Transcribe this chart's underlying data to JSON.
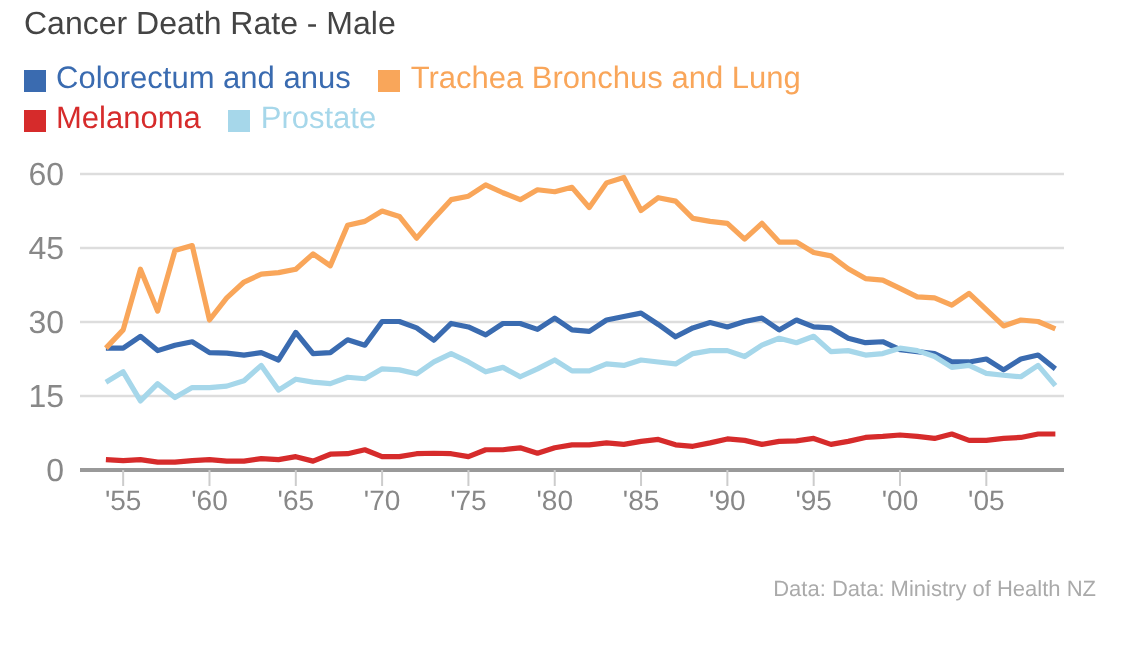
{
  "chart_data": {
    "type": "line",
    "title": "Cancer Death Rate - Male",
    "x": [
      1954,
      1955,
      1956,
      1957,
      1958,
      1959,
      1960,
      1961,
      1962,
      1963,
      1964,
      1965,
      1966,
      1967,
      1968,
      1969,
      1970,
      1971,
      1972,
      1973,
      1974,
      1975,
      1976,
      1977,
      1978,
      1979,
      1980,
      1981,
      1982,
      1983,
      1984,
      1985,
      1986,
      1987,
      1988,
      1989,
      1990,
      1991,
      1992,
      1993,
      1994,
      1995,
      1996,
      1997,
      1998,
      1999,
      2000,
      2001,
      2002,
      2003,
      2004,
      2005,
      2006,
      2007,
      2008,
      2009
    ],
    "series": [
      {
        "name": "Colorectum and anus",
        "color": "#3a6bb0",
        "values": [
          24.7,
          24.7,
          27.1,
          24.2,
          25.3,
          26,
          23.8,
          23.7,
          23.3,
          23.8,
          22.3,
          27.9,
          23.6,
          23.8,
          26.4,
          25.3,
          30.1,
          30.1,
          28.8,
          26.3,
          29.7,
          29,
          27.4,
          29.7,
          29.7,
          28.5,
          30.8,
          28.4,
          28.1,
          30.4,
          31.1,
          31.8,
          29.5,
          27,
          28.8,
          29.9,
          29,
          30.1,
          30.8,
          28.4,
          30.4,
          29,
          28.8,
          26.7,
          25.8,
          26,
          24.4,
          24,
          23.6,
          21.9,
          21.9,
          22.5,
          20.3,
          22.5,
          23.3,
          20.5
        ]
      },
      {
        "name": "Trachea Bronchus and Lung",
        "color": "#f9a65a",
        "values": [
          24.7,
          28.4,
          40.7,
          32.2,
          44.5,
          45.5,
          30.4,
          34.9,
          38.1,
          39.7,
          40,
          40.7,
          43.8,
          41.4,
          49.6,
          50.4,
          52.5,
          51.4,
          47,
          51,
          54.8,
          55.5,
          57.8,
          56.2,
          54.8,
          56.8,
          56.4,
          57.3,
          53.2,
          58.2,
          59.3,
          52.6,
          55.2,
          54.5,
          51,
          50.4,
          50,
          46.8,
          50,
          46.2,
          46.2,
          44.1,
          43.4,
          40.8,
          38.8,
          38.5,
          36.8,
          35.1,
          34.9,
          33.4,
          35.8,
          32.5,
          29.2,
          30.4,
          30.1,
          28.6
        ]
      },
      {
        "name": "Melanoma",
        "color": "#d62b2b",
        "values": [
          2.1,
          1.9,
          2.1,
          1.6,
          1.6,
          1.9,
          2.1,
          1.8,
          1.8,
          2.3,
          2.1,
          2.7,
          1.8,
          3.2,
          3.3,
          4.1,
          2.7,
          2.7,
          3.3,
          3.4,
          3.3,
          2.7,
          4.1,
          4.1,
          4.5,
          3.4,
          4.5,
          5.1,
          5.1,
          5.5,
          5.2,
          5.8,
          6.2,
          5.1,
          4.8,
          5.5,
          6.3,
          6,
          5.2,
          5.8,
          5.9,
          6.4,
          5.2,
          5.8,
          6.6,
          6.8,
          7.1,
          6.8,
          6.4,
          7.3,
          6,
          6,
          6.4,
          6.6,
          7.3,
          7.3
        ]
      },
      {
        "name": "Prostate",
        "color": "#a6d7ea",
        "values": [
          17.8,
          19.9,
          14,
          17.5,
          14.7,
          16.7,
          16.7,
          17,
          18.1,
          21.2,
          16.2,
          18.4,
          17.8,
          17.5,
          18.8,
          18.5,
          20.5,
          20.3,
          19.5,
          21.9,
          23.6,
          21.9,
          19.9,
          20.8,
          18.9,
          20.5,
          22.3,
          20.1,
          20.1,
          21.5,
          21.2,
          22.3,
          21.9,
          21.5,
          23.6,
          24.2,
          24.2,
          23,
          25.3,
          26.7,
          25.8,
          27.1,
          24,
          24.2,
          23.3,
          23.6,
          24.7,
          24.2,
          23,
          20.8,
          21.2,
          19.6,
          19.2,
          18.9,
          21.2,
          17.1
        ]
      }
    ],
    "xlim": [
      1952.5,
      2009.5
    ],
    "xticks": [
      {
        "value": 1955,
        "label": "'55"
      },
      {
        "value": 1960,
        "label": "'60"
      },
      {
        "value": 1965,
        "label": "'65"
      },
      {
        "value": 1970,
        "label": "'70"
      },
      {
        "value": 1975,
        "label": "'75"
      },
      {
        "value": 1980,
        "label": "'80"
      },
      {
        "value": 1985,
        "label": "'85"
      },
      {
        "value": 1990,
        "label": "'90"
      },
      {
        "value": 1995,
        "label": "'95"
      },
      {
        "value": 2000,
        "label": "'00"
      },
      {
        "value": 2005,
        "label": "'05"
      }
    ],
    "ylim": [
      0,
      60
    ],
    "yticks": [
      0,
      15,
      30,
      45,
      60
    ],
    "grid": "y",
    "legend": "top",
    "marker": "none",
    "line_style": "solid",
    "annotations": [
      "Data: Data: Ministry of Health NZ"
    ]
  }
}
